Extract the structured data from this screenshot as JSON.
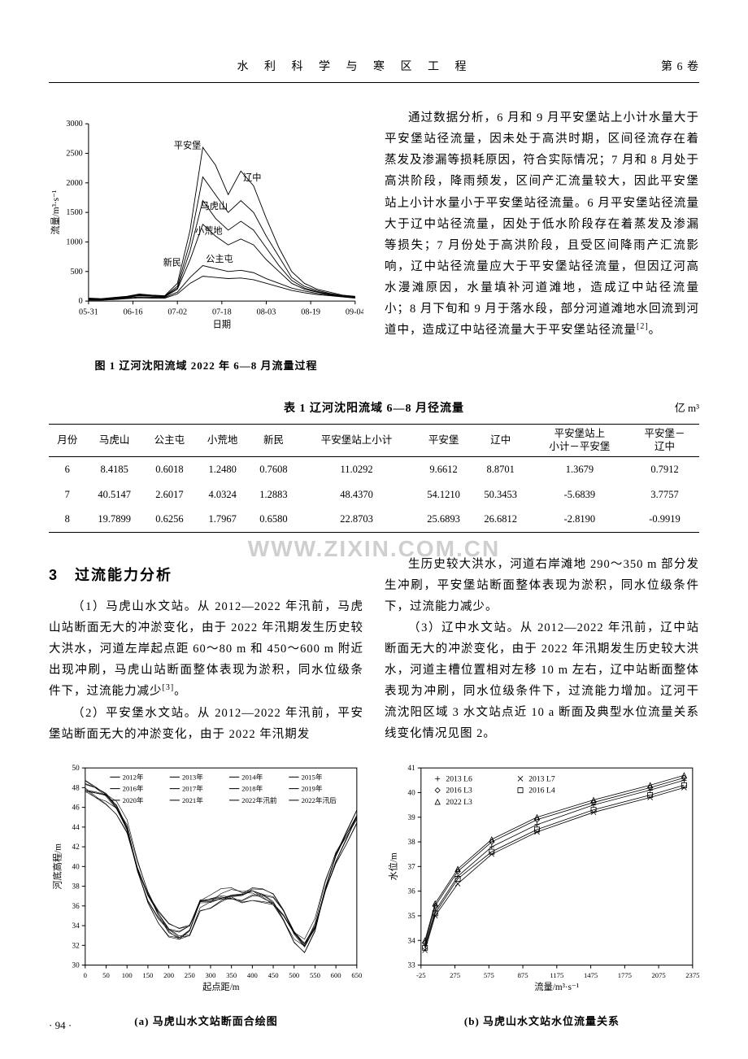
{
  "header": {
    "journal": "水 利 科 学 与 寒 区 工 程",
    "volume": "第 6 卷"
  },
  "figure1": {
    "caption": "图 1  辽河沈阳流域 2022 年 6—8 月流量过程",
    "type": "line",
    "x_label": "日期",
    "y_label": "流量/m³·s⁻¹",
    "xlim": [
      "05-31",
      "09-04"
    ],
    "ylim": [
      0,
      3000
    ],
    "ytick_step": 500,
    "x_ticks": [
      "05-31",
      "06-16",
      "07-02",
      "07-18",
      "08-03",
      "08-19",
      "09-04"
    ],
    "background_color": "#ffffff",
    "axis_color": "#000000",
    "series_labels": [
      "平安堡",
      "辽中",
      "马虎山",
      "小荒地",
      "新民",
      "公主屯"
    ],
    "series_color": "#000000",
    "label_fontsize": 10,
    "series": {
      "平安堡": [
        50,
        40,
        60,
        80,
        120,
        100,
        90,
        300,
        1200,
        2600,
        2300,
        1800,
        2200,
        1950,
        1400,
        900,
        500,
        300,
        200,
        150,
        100,
        80
      ],
      "辽中": [
        40,
        35,
        55,
        75,
        110,
        95,
        85,
        250,
        1000,
        2100,
        1800,
        1500,
        1700,
        1500,
        1100,
        750,
        400,
        250,
        180,
        130,
        90,
        70
      ],
      "马虎山": [
        30,
        30,
        50,
        70,
        100,
        90,
        80,
        220,
        850,
        1700,
        1400,
        1200,
        1350,
        1200,
        900,
        600,
        350,
        220,
        160,
        120,
        85,
        65
      ],
      "小荒地": [
        25,
        25,
        45,
        60,
        90,
        80,
        70,
        200,
        700,
        1300,
        1100,
        950,
        1050,
        950,
        700,
        500,
        300,
        200,
        150,
        110,
        80,
        60
      ],
      "新民": [
        20,
        20,
        35,
        50,
        70,
        65,
        60,
        150,
        400,
        600,
        550,
        500,
        520,
        480,
        380,
        300,
        220,
        170,
        130,
        100,
        75,
        55
      ],
      "公主屯": [
        15,
        15,
        25,
        40,
        55,
        50,
        48,
        120,
        300,
        420,
        400,
        380,
        390,
        360,
        300,
        240,
        180,
        140,
        110,
        90,
        70,
        50
      ]
    }
  },
  "right_text": {
    "p1": "通过数据分析，6 月和 9 月平安堡站上小计水量大于平安堡站径流量，因未处于高洪时期，区间径流存在着蒸发及渗漏等损耗原因，符合实际情况；7 月和 8 月处于高洪阶段，降雨频发，区间产汇流量较大，因此平安堡站上小计水量小于平安堡站径流量。6 月平安堡站径流量大于辽中站径流量，因处于低水阶段存在着蒸发及渗漏等损失；7 月份处于高洪阶段，且受区间降雨产汇流影响，辽中站径流量应大于平安堡站径流量，但因辽河高水漫滩原因，水量填补河道滩地，造成辽中站径流量小；8 月下旬和 9 月于落水段，部分河道滩地水回流到河道中，造成辽中站径流量大于平安堡站径流量",
    "p1_ref": "[2]"
  },
  "table1": {
    "caption": "表 1  辽河沈阳流域 6—8 月径流量",
    "unit": "亿 m³",
    "columns": [
      "月份",
      "马虎山",
      "公主屯",
      "小荒地",
      "新民",
      "平安堡站上小计",
      "平安堡",
      "辽中",
      "平安堡站上\n小计－平安堡",
      "平安堡－\n辽中"
    ],
    "rows": [
      [
        "6",
        "8.4185",
        "0.6018",
        "1.2480",
        "0.7608",
        "11.0292",
        "9.6612",
        "8.8701",
        "1.3679",
        "0.7912"
      ],
      [
        "7",
        "40.5147",
        "2.6017",
        "4.0324",
        "1.2883",
        "48.4370",
        "54.1210",
        "50.3453",
        "-5.6839",
        "3.7757"
      ],
      [
        "8",
        "19.7899",
        "0.6256",
        "1.7967",
        "0.6580",
        "22.8703",
        "25.6893",
        "26.6812",
        "-2.8190",
        "-0.9919"
      ]
    ]
  },
  "watermark": "WWW.ZIXIN.COM.CN",
  "section3_title": "3　过流能力分析",
  "section3": {
    "p1": "（1）马虎山水文站。从 2012—2022 年汛前，马虎山站断面无大的冲淤变化，由于 2022 年汛期发生历史较大洪水，河道左岸起点距 60～80 m 和 450～600 m 附近出现冲刷，马虎山站断面整体表现为淤积，同水位级条件下，过流能力减少",
    "p1_ref": "[3]",
    "p2": "（2）平安堡水文站。从 2012—2022 年汛前，平安堡站断面无大的冲淤变化，由于 2022 年汛期发",
    "p3": "生历史较大洪水，河道右岸滩地 290～350 m 部分发生冲刷，平安堡站断面整体表现为淤积，同水位级条件下，过流能力减少。",
    "p4": "（3）辽中水文站。从 2012—2022 年汛前，辽中站断面无大的冲淤变化，由于 2022 年汛期发生历史较大洪水，河道主槽位置相对左移 10 m 左右，辽中站断面整体表现为冲刷，同水位级条件下，过流能力增加。辽河干流沈阳区域 3 水文站点近 10 a 断面及典型水位流量关系线变化情况见图 2。"
  },
  "figure2a": {
    "caption": "(a) 马虎山水文站断面合绘图",
    "type": "line",
    "x_label": "起点距/m",
    "y_label": "河底高程/m",
    "xlim": [
      0,
      650
    ],
    "x_tick_step": 50,
    "ylim": [
      30,
      50
    ],
    "y_tick_step": 2,
    "legend": [
      "2012年",
      "2013年",
      "2014年",
      "2015年",
      "2016年",
      "2017年",
      "2018年",
      "2019年",
      "2020年",
      "2021年",
      "2022年\n汛前",
      "2022年\n汛后"
    ],
    "series_color": "#000000",
    "background_color": "#ffffff",
    "profile": [
      48,
      47.5,
      47,
      46,
      44,
      40,
      37,
      35,
      33.5,
      33,
      33.5,
      36.2,
      36.5,
      37,
      37.2,
      37,
      37.3,
      37,
      36.5,
      35,
      33,
      32,
      34,
      38,
      41,
      43,
      45
    ]
  },
  "figure2b": {
    "caption": "(b) 马虎山水文站水位流量关系",
    "type": "line",
    "x_label": "流量/m³·s⁻¹",
    "y_label": "水位/m",
    "xlim": [
      -25,
      2375
    ],
    "x_ticks": [
      -25,
      275,
      575,
      875,
      1175,
      1475,
      1775,
      2075,
      2375
    ],
    "ylim": [
      33,
      41
    ],
    "y_tick_step": 1,
    "legend": [
      "2013 L6",
      "2013 L7",
      "2016 L3",
      "2016 L4",
      "2022 L3"
    ],
    "series_color": "#000000",
    "background_color": "#ffffff",
    "curves": {
      "2013 L6": [
        [
          10,
          33.8
        ],
        [
          100,
          35.2
        ],
        [
          300,
          36.6
        ],
        [
          600,
          37.8
        ],
        [
          1000,
          38.7
        ],
        [
          1500,
          39.5
        ],
        [
          2000,
          40.1
        ],
        [
          2300,
          40.5
        ]
      ],
      "2013 L7": [
        [
          10,
          33.6
        ],
        [
          100,
          35.0
        ],
        [
          300,
          36.3
        ],
        [
          600,
          37.5
        ],
        [
          1000,
          38.4
        ],
        [
          1500,
          39.2
        ],
        [
          2000,
          39.8
        ],
        [
          2300,
          40.2
        ]
      ],
      "2016 L3": [
        [
          10,
          33.9
        ],
        [
          100,
          35.4
        ],
        [
          300,
          36.8
        ],
        [
          600,
          38.0
        ],
        [
          1000,
          38.9
        ],
        [
          1500,
          39.6
        ],
        [
          2000,
          40.2
        ],
        [
          2300,
          40.6
        ]
      ],
      "2016 L4": [
        [
          10,
          33.7
        ],
        [
          100,
          35.1
        ],
        [
          300,
          36.5
        ],
        [
          600,
          37.6
        ],
        [
          1000,
          38.5
        ],
        [
          1500,
          39.3
        ],
        [
          2000,
          39.9
        ],
        [
          2300,
          40.3
        ]
      ],
      "2022 L3": [
        [
          10,
          34.0
        ],
        [
          100,
          35.5
        ],
        [
          300,
          36.9
        ],
        [
          600,
          38.1
        ],
        [
          1000,
          39.0
        ],
        [
          1500,
          39.7
        ],
        [
          2000,
          40.3
        ],
        [
          2300,
          40.7
        ]
      ]
    }
  },
  "page_number": "· 94 ·"
}
